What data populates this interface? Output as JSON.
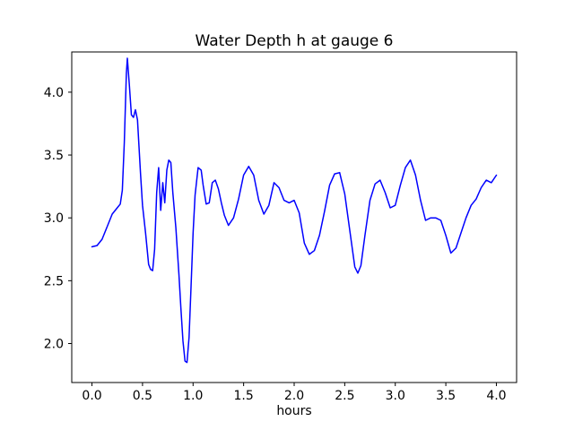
{
  "chart_data": {
    "type": "line",
    "title": "Water Depth h at gauge 6",
    "xlabel": "hours",
    "ylabel": "",
    "xlim": [
      -0.2,
      4.2
    ],
    "ylim": [
      1.69,
      4.32
    ],
    "xticks": [
      0.0,
      0.5,
      1.0,
      1.5,
      2.0,
      2.5,
      3.0,
      3.5,
      4.0
    ],
    "yticks": [
      2.0,
      2.5,
      3.0,
      3.5,
      4.0
    ],
    "grid": false,
    "legend": "none",
    "line_color": "#0000ff",
    "frame_color": "#000000",
    "background_color": "#ffffff",
    "series": [
      {
        "name": "water depth h",
        "x": [
          0.0,
          0.05,
          0.1,
          0.15,
          0.2,
          0.25,
          0.28,
          0.3,
          0.32,
          0.34,
          0.35,
          0.37,
          0.39,
          0.41,
          0.43,
          0.45,
          0.48,
          0.5,
          0.53,
          0.56,
          0.58,
          0.6,
          0.62,
          0.64,
          0.66,
          0.68,
          0.7,
          0.72,
          0.74,
          0.76,
          0.78,
          0.8,
          0.83,
          0.86,
          0.88,
          0.9,
          0.92,
          0.94,
          0.96,
          0.98,
          1.0,
          1.02,
          1.05,
          1.08,
          1.1,
          1.13,
          1.16,
          1.19,
          1.22,
          1.25,
          1.28,
          1.31,
          1.35,
          1.4,
          1.45,
          1.5,
          1.55,
          1.6,
          1.65,
          1.7,
          1.75,
          1.8,
          1.85,
          1.9,
          1.95,
          2.0,
          2.05,
          2.1,
          2.15,
          2.2,
          2.25,
          2.3,
          2.35,
          2.4,
          2.45,
          2.5,
          2.55,
          2.6,
          2.63,
          2.66,
          2.7,
          2.75,
          2.8,
          2.85,
          2.9,
          2.95,
          3.0,
          3.05,
          3.1,
          3.15,
          3.2,
          3.25,
          3.3,
          3.35,
          3.4,
          3.45,
          3.5,
          3.55,
          3.6,
          3.65,
          3.7,
          3.75,
          3.8,
          3.85,
          3.9,
          3.95,
          4.0
        ],
        "y": [
          2.77,
          2.78,
          2.83,
          2.93,
          3.03,
          3.08,
          3.11,
          3.22,
          3.6,
          4.15,
          4.27,
          4.05,
          3.82,
          3.8,
          3.86,
          3.78,
          3.35,
          3.1,
          2.88,
          2.63,
          2.59,
          2.58,
          2.75,
          3.2,
          3.4,
          3.06,
          3.28,
          3.12,
          3.38,
          3.46,
          3.44,
          3.2,
          2.92,
          2.55,
          2.28,
          2.02,
          1.86,
          1.85,
          2.05,
          2.45,
          2.88,
          3.18,
          3.4,
          3.38,
          3.26,
          3.11,
          3.12,
          3.28,
          3.3,
          3.23,
          3.12,
          3.02,
          2.94,
          3.0,
          3.15,
          3.34,
          3.41,
          3.34,
          3.14,
          3.03,
          3.1,
          3.28,
          3.24,
          3.14,
          3.12,
          3.14,
          3.04,
          2.8,
          2.71,
          2.74,
          2.86,
          3.05,
          3.26,
          3.35,
          3.36,
          3.19,
          2.9,
          2.61,
          2.56,
          2.62,
          2.86,
          3.14,
          3.27,
          3.3,
          3.2,
          3.08,
          3.1,
          3.26,
          3.4,
          3.46,
          3.34,
          3.14,
          2.98,
          3.0,
          3.0,
          2.98,
          2.86,
          2.72,
          2.76,
          2.88,
          3.0,
          3.1,
          3.15,
          3.24,
          3.3,
          3.28,
          3.34
        ]
      }
    ]
  }
}
